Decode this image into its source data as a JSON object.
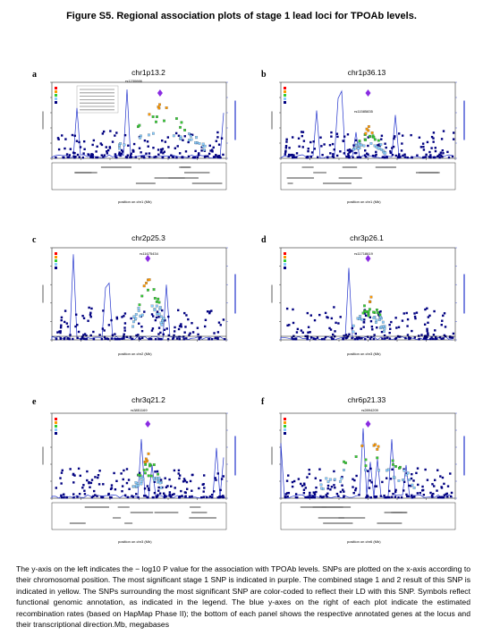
{
  "figure": {
    "title": "Figure S5. Regional association plots of stage 1 lead loci for TPOAb levels."
  },
  "panels": [
    {
      "letter": "a",
      "title": "chr1p13.2",
      "snp": "rs1230666",
      "xlabel": "position on chr1 (Mb)"
    },
    {
      "letter": "b",
      "title": "chr1p36.13",
      "snp": "rs11585835",
      "xlabel": "position on chr1 (Mb)"
    },
    {
      "letter": "c",
      "title": "chr2p25.3",
      "snp": "rs11675434",
      "xlabel": "position on chr2 (Mb)"
    },
    {
      "letter": "d",
      "title": "chr3p26.1",
      "snp": "rs11718619",
      "xlabel": "position on chr3 (Mb)"
    },
    {
      "letter": "e",
      "title": "chr3q21.2",
      "snp": "rs3851169",
      "xlabel": "position on chr3 (Mb)"
    },
    {
      "letter": "f",
      "title": "chr6p21.33",
      "snp": "rs2894209",
      "xlabel": "position on chr6 (Mb)"
    }
  ],
  "axis_labels": {
    "y_left": "-log10 p-value",
    "y_right": "Recombination rate (cM/Mb)"
  },
  "colors": {
    "ld_high": "#ff0000",
    "ld_midhigh": "#ff9900",
    "ld_mid": "#33cc33",
    "ld_low": "#88ccff",
    "ld_none": "#000080",
    "lead": "#8a2be2",
    "recomb": "#2233cc"
  },
  "caption": "The y-axis on the left indicates the − log10 P value for the association with TPOAb levels. SNPs are plotted on the x-axis according to their chromosomal position. The most significant stage 1 SNP is indicated in purple. The combined stage 1 and 2 result of this SNP is indicated in yellow. The SNPs surrounding the most significant SNP are color-coded to reflect their LD with this SNP. Symbols reflect functional genomic annotation, as indicated in the legend. The blue y-axes on the right of each plot indicate the estimated recombination rates (based on HapMap Phase II); the bottom of each panel shows the respective annotated genes at the locus and their transcriptional direction.Mb, megabases"
}
